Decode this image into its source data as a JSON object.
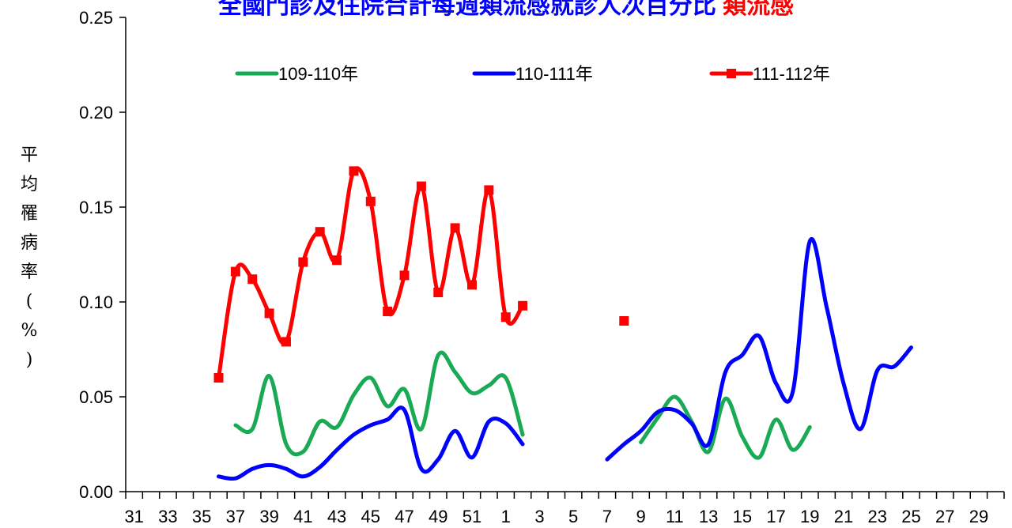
{
  "chart_data": {
    "type": "line",
    "title": "全國門診及住院合計每週類流感就診人次百分比 類流感",
    "title_main": "全國門診及住院合計每週類流感就診人次百分比",
    "title_highlight": "類流感",
    "ylabel": "平均罹病率(%)",
    "ylabel_chars": [
      "平",
      "均",
      "罹",
      "病",
      "率",
      "(",
      "%",
      ")"
    ],
    "ylim": [
      0,
      0.25
    ],
    "yticks": [
      "0.00",
      "0.05",
      "0.10",
      "0.15",
      "0.20",
      "0.25"
    ],
    "x": [
      "31",
      "32",
      "33",
      "34",
      "35",
      "36",
      "37",
      "38",
      "39",
      "40",
      "41",
      "42",
      "43",
      "44",
      "45",
      "46",
      "47",
      "48",
      "49",
      "50",
      "51",
      "52",
      "1",
      "2",
      "3",
      "4",
      "5",
      "6",
      "7",
      "8",
      "9",
      "10",
      "11",
      "12",
      "13",
      "14",
      "15",
      "16",
      "17",
      "18",
      "19",
      "20",
      "21",
      "22",
      "23",
      "24",
      "25",
      "26",
      "27",
      "28",
      "29",
      "30"
    ],
    "xtick_labels": [
      "31",
      "",
      "33",
      "",
      "35",
      "",
      "37",
      "",
      "39",
      "",
      "41",
      "",
      "43",
      "",
      "45",
      "",
      "47",
      "",
      "49",
      "",
      "51",
      "",
      "1",
      "",
      "3",
      "",
      "5",
      "",
      "7",
      "",
      "9",
      "",
      "11",
      "",
      "13",
      "",
      "15",
      "",
      "17",
      "",
      "19",
      "",
      "21",
      "",
      "23",
      "",
      "25",
      "",
      "27",
      "",
      "29",
      ""
    ],
    "grid": false,
    "legend_position": "top",
    "series": [
      {
        "name": "109-110年",
        "color": "#1aaa55",
        "marker": "none",
        "values": [
          null,
          null,
          null,
          null,
          null,
          null,
          0.035,
          0.033,
          0.061,
          0.025,
          0.021,
          0.037,
          0.034,
          0.051,
          0.06,
          0.045,
          0.054,
          0.033,
          0.072,
          0.063,
          0.052,
          0.056,
          0.06,
          0.03,
          null,
          null,
          null,
          null,
          null,
          null,
          0.026,
          0.039,
          0.05,
          0.037,
          0.021,
          0.049,
          0.029,
          0.018,
          0.038,
          0.022,
          0.034,
          null,
          null,
          null,
          null,
          null,
          null,
          null,
          null,
          null,
          null,
          null
        ]
      },
      {
        "name": "110-111年",
        "color": "#0000ff",
        "marker": "none",
        "values": [
          null,
          null,
          null,
          null,
          null,
          0.008,
          0.007,
          0.012,
          0.014,
          0.012,
          0.008,
          0.013,
          0.022,
          0.03,
          0.035,
          0.038,
          0.043,
          0.012,
          0.017,
          0.032,
          0.018,
          0.037,
          0.036,
          0.025,
          null,
          null,
          null,
          null,
          0.017,
          0.025,
          0.032,
          0.042,
          0.043,
          0.036,
          0.025,
          0.063,
          0.072,
          0.082,
          0.057,
          0.053,
          0.132,
          0.097,
          0.057,
          0.033,
          0.064,
          0.066,
          0.076,
          null,
          null,
          null,
          null,
          null
        ]
      },
      {
        "name": "111-112年",
        "color": "#ff0000",
        "marker": "square",
        "values": [
          null,
          null,
          null,
          null,
          null,
          0.06,
          0.116,
          0.112,
          0.094,
          0.079,
          0.121,
          0.137,
          0.122,
          0.169,
          0.153,
          0.095,
          0.114,
          0.161,
          0.105,
          0.139,
          0.109,
          0.159,
          0.092,
          0.098,
          null,
          null,
          null,
          null,
          null,
          0.09,
          null,
          null,
          null,
          null,
          null,
          null,
          null,
          null,
          null,
          null,
          null,
          null,
          null,
          null,
          null,
          null,
          null,
          null,
          null,
          null,
          null,
          null
        ]
      }
    ]
  }
}
